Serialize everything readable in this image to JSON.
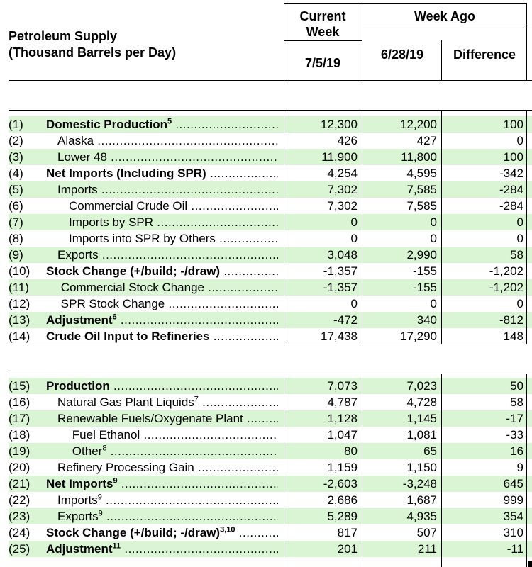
{
  "header": {
    "title_line1": "Petroleum Supply",
    "title_line2": "(Thousand Barrels per Day)",
    "current_week_line1": "Current",
    "current_week_line2": "Week",
    "week_ago": "Week Ago",
    "date_current": "7/5/19",
    "date_week_ago": "6/28/19",
    "difference": "Difference"
  },
  "section1": [
    {
      "num": "(1)",
      "label": "Domestic Production",
      "sup": "5",
      "bold": true,
      "indent": 0,
      "v1": "12,300",
      "v2": "12,200",
      "v3": "100"
    },
    {
      "num": "(2)",
      "label": "Alaska",
      "sup": "",
      "bold": false,
      "indent": 1,
      "v1": "426",
      "v2": "427",
      "v3": "0"
    },
    {
      "num": "(3)",
      "label": "Lower 48",
      "sup": "",
      "bold": false,
      "indent": 1,
      "v1": "11,900",
      "v2": "11,800",
      "v3": "100"
    },
    {
      "num": "(4)",
      "label": "Net Imports (Including SPR)",
      "sup": "",
      "bold": true,
      "indent": 0,
      "v1": "4,254",
      "v2": "4,595",
      "v3": "-342"
    },
    {
      "num": "(5)",
      "label": "Imports",
      "sup": "",
      "bold": false,
      "indent": 1,
      "v1": "7,302",
      "v2": "7,585",
      "v3": "-284"
    },
    {
      "num": "(6)",
      "label": "Commercial Crude Oil",
      "sup": "",
      "bold": false,
      "indent": 2,
      "v1": "7,302",
      "v2": "7,585",
      "v3": "-284"
    },
    {
      "num": "(7)",
      "label": "Imports by SPR",
      "sup": "",
      "bold": false,
      "indent": 2,
      "v1": "0",
      "v2": "0",
      "v3": "0"
    },
    {
      "num": "(8)",
      "label": "Imports into SPR by Others",
      "sup": "",
      "bold": false,
      "indent": 2,
      "v1": "0",
      "v2": "0",
      "v3": "0"
    },
    {
      "num": "(9)",
      "label": "Exports",
      "sup": "",
      "bold": false,
      "indent": 1,
      "v1": "3,048",
      "v2": "2,990",
      "v3": "58"
    },
    {
      "num": "(10)",
      "label": "Stock Change (+/build; -/draw)",
      "sup": "",
      "bold": true,
      "indent": 0,
      "v1": "-1,357",
      "v2": "-155",
      "v3": "-1,202"
    },
    {
      "num": "(11)",
      "label": "Commercial Stock Change",
      "sup": "",
      "bold": false,
      "indent": 1.3,
      "v1": "-1,357",
      "v2": "-155",
      "v3": "-1,202"
    },
    {
      "num": "(12)",
      "label": "SPR Stock Change",
      "sup": "",
      "bold": false,
      "indent": 1.3,
      "v1": "0",
      "v2": "0",
      "v3": "0"
    },
    {
      "num": "(13)",
      "label": "Adjustment",
      "sup": "6",
      "bold": true,
      "indent": 0,
      "v1": "-472",
      "v2": "340",
      "v3": "-812"
    },
    {
      "num": "(14)",
      "label": "Crude Oil Input to Refineries",
      "sup": "",
      "bold": true,
      "indent": 0,
      "v1": "17,438",
      "v2": "17,290",
      "v3": "148"
    }
  ],
  "section2": [
    {
      "num": "(15)",
      "label": "Production",
      "sup": "",
      "bold": true,
      "indent": 0,
      "v1": "7,073",
      "v2": "7,023",
      "v3": "50"
    },
    {
      "num": "(16)",
      "label": "Natural Gas Plant Liquids",
      "sup": "7",
      "bold": false,
      "indent": 1,
      "v1": "4,787",
      "v2": "4,728",
      "v3": "58"
    },
    {
      "num": "(17)",
      "label": "Renewable Fuels/Oxygenate Plant",
      "sup": "",
      "bold": false,
      "indent": 1,
      "v1": "1,128",
      "v2": "1,145",
      "v3": "-17"
    },
    {
      "num": "(18)",
      "label": "Fuel Ethanol",
      "sup": "",
      "bold": false,
      "indent": 2.3,
      "v1": "1,047",
      "v2": "1,081",
      "v3": "-33"
    },
    {
      "num": "(19)",
      "label": "Other",
      "sup": "8",
      "bold": false,
      "indent": 2.3,
      "v1": "80",
      "v2": "65",
      "v3": "16"
    },
    {
      "num": "(20)",
      "label": "Refinery Processing Gain",
      "sup": "",
      "bold": false,
      "indent": 1,
      "v1": "1,159",
      "v2": "1,150",
      "v3": "9"
    },
    {
      "num": "(21)",
      "label": "Net Imports",
      "sup": "9",
      "bold": true,
      "indent": 0,
      "v1": "-2,603",
      "v2": "-3,248",
      "v3": "645"
    },
    {
      "num": "(22)",
      "label": "Imports",
      "sup": "9",
      "bold": false,
      "indent": 1,
      "v1": "2,686",
      "v2": "1,687",
      "v3": "999"
    },
    {
      "num": "(23)",
      "label": "Exports",
      "sup": "9",
      "bold": false,
      "indent": 1,
      "v1": "5,289",
      "v2": "4,935",
      "v3": "354"
    },
    {
      "num": "(24)",
      "label": "Stock Change (+/build; -/draw)",
      "sup": "3,10",
      "bold": true,
      "indent": 0,
      "v1": "817",
      "v2": "507",
      "v3": "310"
    },
    {
      "num": "(25)",
      "label": "Adjustment",
      "sup": "11",
      "bold": true,
      "indent": 0,
      "v1": "201",
      "v2": "211",
      "v3": "-11"
    }
  ]
}
